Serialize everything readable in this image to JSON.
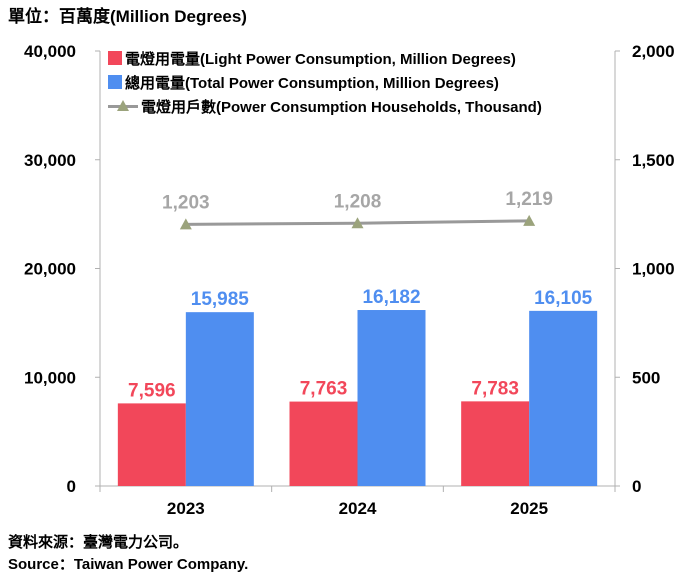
{
  "header": {
    "unit_title": "單位：百萬度(Million Degrees)"
  },
  "source": {
    "zh": "資料來源：臺灣電力公司。",
    "en": "Source：Taiwan Power Company."
  },
  "chart_data": {
    "type": "bar",
    "categories": [
      "2023",
      "2024",
      "2025"
    ],
    "series": [
      {
        "name": "電燈用電量(Light Power Consumption, Million Degrees)",
        "type": "bar",
        "axis": "left",
        "color": "#f2475a",
        "values": [
          7596,
          7763,
          7783
        ],
        "labels": [
          "7,596",
          "7,763",
          "7,783"
        ]
      },
      {
        "name": "總用電量(Total Power Consumption, Million Degrees)",
        "type": "bar",
        "axis": "left",
        "color": "#4f8ef0",
        "values": [
          15985,
          16182,
          16105
        ],
        "labels": [
          "15,985",
          "16,182",
          "16,105"
        ]
      },
      {
        "name": "電燈用戶數(Power Consumption Households, Thousand)",
        "type": "line",
        "axis": "right",
        "color": "#999999",
        "marker_color": "#9ba37c",
        "values": [
          1203,
          1208,
          1219
        ],
        "labels": [
          "1,203",
          "1,208",
          "1,219"
        ]
      }
    ],
    "left_axis": {
      "min": 0,
      "max": 40000,
      "ticks": [
        0,
        10000,
        20000,
        30000,
        40000
      ],
      "tick_labels": [
        "0",
        "10,000",
        "20,000",
        "30,000",
        "40,000"
      ]
    },
    "right_axis": {
      "min": 0,
      "max": 2000,
      "ticks": [
        0,
        500,
        1000,
        1500,
        2000
      ],
      "tick_labels": [
        "0",
        "500",
        "1,000",
        "1,500",
        "2,000"
      ]
    },
    "legend_position": "top-left",
    "grid": false
  }
}
